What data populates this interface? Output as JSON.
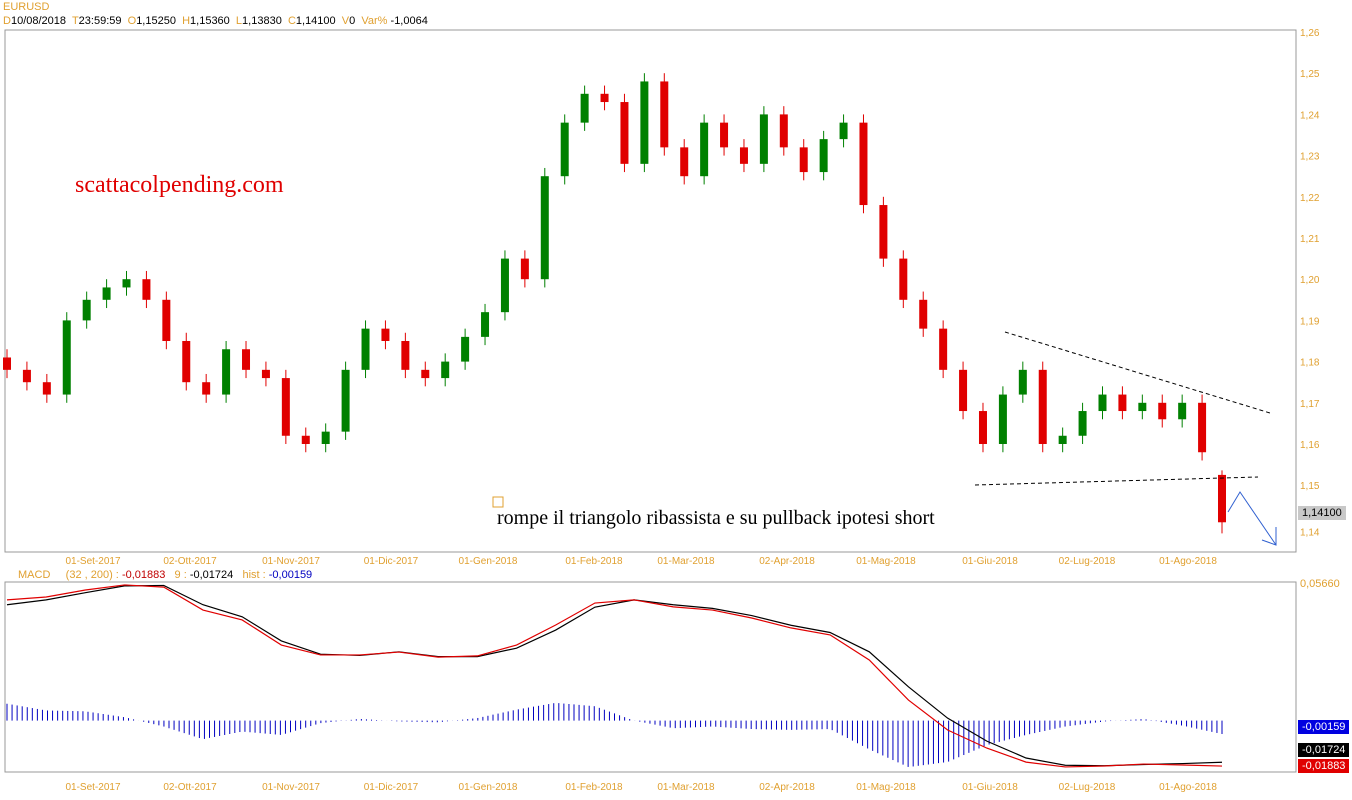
{
  "header": {
    "symbol": "EURUSD",
    "d_label": "D",
    "date": "10/08/2018",
    "t_label": "T",
    "time": "23:59:59",
    "o_label": "O",
    "open": "1,15250",
    "h_label": "H",
    "high": "1,15360",
    "l_label": "L",
    "low": "1,13830",
    "c_label": "C",
    "close": "1,14100",
    "v_label": "V",
    "volume": "0",
    "var_label": "Var%",
    "var": "-1,0064"
  },
  "watermark": "scattacolpending.com",
  "annotation": "rompe il triangolo ribassista e su pullback ipotesi short",
  "last_price_label": "1,14100",
  "macd_header": {
    "name": "MACD",
    "params": "(32 , 200) :",
    "macd": "-0,01883",
    "signal_label": "9 :",
    "signal": "-0,01724",
    "hist_label": "hist :",
    "hist": "-0,00159"
  },
  "macd_labels": {
    "top": "0,05660",
    "hist": "-0,00159",
    "signal": "-0,01724",
    "macd": "-0,01883"
  },
  "colors": {
    "up": "#008000",
    "down": "#e00000",
    "macd": "#e00000",
    "signal": "#000000",
    "hist": "#0000c0",
    "accent": "#e0a030"
  },
  "chart_data": [
    {
      "type": "candlestick",
      "title": "EURUSD",
      "x_ticks": [
        "01-Set-2017",
        "02-Ott-2017",
        "01-Nov-2017",
        "01-Dic-2017",
        "01-Gen-2018",
        "01-Feb-2018",
        "01-Mar-2018",
        "02-Apr-2018",
        "01-Mag-2018",
        "01-Giu-2018",
        "02-Lug-2018",
        "01-Ago-2018"
      ],
      "y_ticks": [
        "1,14",
        "1,15",
        "1,16",
        "1,17",
        "1,18",
        "1,19",
        "1,20",
        "1,21",
        "1,22",
        "1,23",
        "1,24",
        "1,25",
        "1,26"
      ],
      "ylim": [
        1.14,
        1.26
      ],
      "closes": [
        1.178,
        1.175,
        1.172,
        1.19,
        1.195,
        1.198,
        1.2,
        1.195,
        1.185,
        1.175,
        1.172,
        1.183,
        1.178,
        1.176,
        1.162,
        1.16,
        1.163,
        1.178,
        1.188,
        1.185,
        1.178,
        1.176,
        1.18,
        1.186,
        1.192,
        1.205,
        1.2,
        1.225,
        1.238,
        1.245,
        1.243,
        1.228,
        1.248,
        1.232,
        1.225,
        1.238,
        1.232,
        1.228,
        1.24,
        1.232,
        1.226,
        1.234,
        1.238,
        1.218,
        1.205,
        1.195,
        1.188,
        1.178,
        1.168,
        1.16,
        1.172,
        1.178,
        1.16,
        1.162,
        1.168,
        1.172,
        1.168,
        1.17,
        1.166,
        1.17,
        1.158,
        1.141
      ],
      "last": {
        "open": 1.1525,
        "high": 1.1536,
        "low": 1.1383,
        "close": 1.141
      }
    },
    {
      "type": "line",
      "title": "MACD (32 , 200) 9",
      "series": [
        {
          "name": "MACD",
          "values": [
            0.05,
            0.0512,
            0.0541,
            0.0562,
            0.0553,
            0.0458,
            0.0417,
            0.0313,
            0.0272,
            0.0272,
            0.0284,
            0.0263,
            0.0268,
            0.0313,
            0.0396,
            0.0487,
            0.05,
            0.0471,
            0.0458,
            0.0425,
            0.0384,
            0.0355,
            0.0251,
            0.0085,
            -0.0039,
            -0.0114,
            -0.0172,
            -0.0192,
            -0.0188,
            -0.018,
            -0.0184,
            -0.01883
          ]
        },
        {
          "name": "9",
          "values": [
            0.048,
            0.05,
            0.053,
            0.0558,
            0.056,
            0.048,
            0.043,
            0.033,
            0.0275,
            0.027,
            0.0285,
            0.0265,
            0.0265,
            0.03,
            0.0375,
            0.047,
            0.05,
            0.048,
            0.0465,
            0.0435,
            0.0395,
            0.0365,
            0.0285,
            0.014,
            0.001,
            -0.0085,
            -0.0155,
            -0.0185,
            -0.0187,
            -0.0182,
            -0.0178,
            -0.01724
          ]
        }
      ],
      "ylim": [
        -0.0188,
        0.0566
      ]
    }
  ]
}
